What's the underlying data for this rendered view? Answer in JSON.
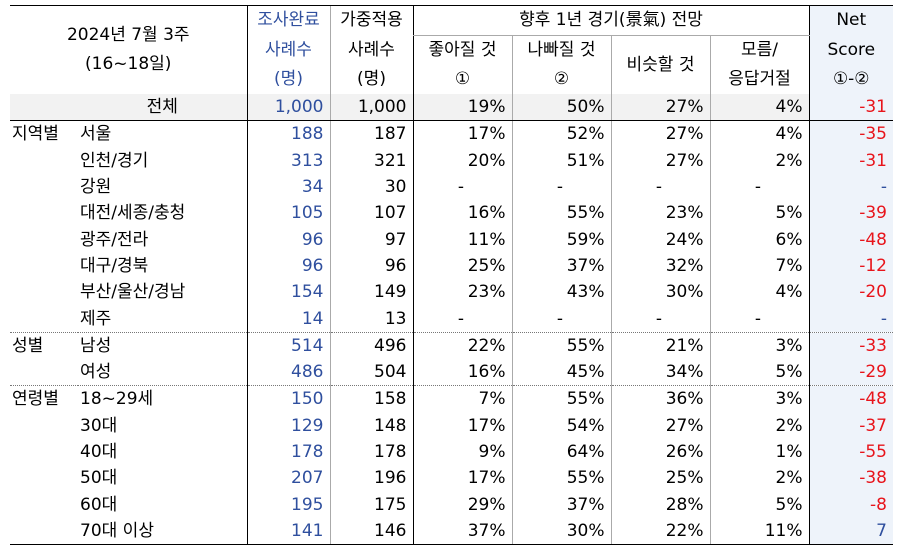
{
  "header": {
    "period_line1": "2024년 7월 3주",
    "period_line2": "(16~18일)",
    "completed": [
      "조사완료",
      "사례수",
      "(명)"
    ],
    "weighted": [
      "가중적용",
      "사례수",
      "(명)"
    ],
    "outlook_title": "향후 1년 경기(景氣) 전망",
    "good": [
      "좋아질 것",
      "①"
    ],
    "bad": [
      "나빠질 것",
      "②"
    ],
    "same": "비슷할 것",
    "unknown": [
      "모름/",
      "응답거절"
    ],
    "net": [
      "Net",
      "Score",
      "①-②"
    ]
  },
  "rows": [
    {
      "group": "",
      "label": "전체",
      "n": "1,000",
      "w": "1,000",
      "good": "19%",
      "bad": "50%",
      "same": "27%",
      "unk": "4%",
      "net": "-31"
    },
    {
      "group": "지역별",
      "label": "서울",
      "n": "188",
      "w": "187",
      "good": "17%",
      "bad": "52%",
      "same": "27%",
      "unk": "4%",
      "net": "-35"
    },
    {
      "group": "",
      "label": "인천/경기",
      "n": "313",
      "w": "321",
      "good": "20%",
      "bad": "51%",
      "same": "27%",
      "unk": "2%",
      "net": "-31"
    },
    {
      "group": "",
      "label": "강원",
      "n": "34",
      "w": "30",
      "good": "-",
      "bad": "-",
      "same": "-",
      "unk": "-",
      "net": "-"
    },
    {
      "group": "",
      "label": "대전/세종/충청",
      "n": "105",
      "w": "107",
      "good": "16%",
      "bad": "55%",
      "same": "23%",
      "unk": "5%",
      "net": "-39"
    },
    {
      "group": "",
      "label": "광주/전라",
      "n": "96",
      "w": "97",
      "good": "11%",
      "bad": "59%",
      "same": "24%",
      "unk": "6%",
      "net": "-48"
    },
    {
      "group": "",
      "label": "대구/경북",
      "n": "96",
      "w": "96",
      "good": "25%",
      "bad": "37%",
      "same": "32%",
      "unk": "7%",
      "net": "-12"
    },
    {
      "group": "",
      "label": "부산/울산/경남",
      "n": "154",
      "w": "149",
      "good": "23%",
      "bad": "43%",
      "same": "30%",
      "unk": "4%",
      "net": "-20"
    },
    {
      "group": "",
      "label": "제주",
      "n": "14",
      "w": "13",
      "good": "-",
      "bad": "-",
      "same": "-",
      "unk": "-",
      "net": "-"
    },
    {
      "group": "성별",
      "label": "남성",
      "n": "514",
      "w": "496",
      "good": "22%",
      "bad": "55%",
      "same": "21%",
      "unk": "3%",
      "net": "-33"
    },
    {
      "group": "",
      "label": "여성",
      "n": "486",
      "w": "504",
      "good": "16%",
      "bad": "45%",
      "same": "34%",
      "unk": "5%",
      "net": "-29"
    },
    {
      "group": "연령별",
      "label": "18~29세",
      "n": "150",
      "w": "158",
      "good": "7%",
      "bad": "55%",
      "same": "36%",
      "unk": "3%",
      "net": "-48"
    },
    {
      "group": "",
      "label": "30대",
      "n": "129",
      "w": "148",
      "good": "17%",
      "bad": "54%",
      "same": "27%",
      "unk": "2%",
      "net": "-37"
    },
    {
      "group": "",
      "label": "40대",
      "n": "178",
      "w": "178",
      "good": "9%",
      "bad": "64%",
      "same": "26%",
      "unk": "1%",
      "net": "-55"
    },
    {
      "group": "",
      "label": "50대",
      "n": "207",
      "w": "196",
      "good": "17%",
      "bad": "55%",
      "same": "25%",
      "unk": "2%",
      "net": "-38"
    },
    {
      "group": "",
      "label": "60대",
      "n": "195",
      "w": "175",
      "good": "29%",
      "bad": "37%",
      "same": "28%",
      "unk": "5%",
      "net": "-8"
    },
    {
      "group": "",
      "label": "70대 이상",
      "n": "141",
      "w": "146",
      "good": "37%",
      "bad": "30%",
      "same": "22%",
      "unk": "11%",
      "net": "7"
    }
  ],
  "colors": {
    "completed_text": "#2f4f9e",
    "net_negative": "#e8141b",
    "net_positive": "#2f4f9e"
  }
}
